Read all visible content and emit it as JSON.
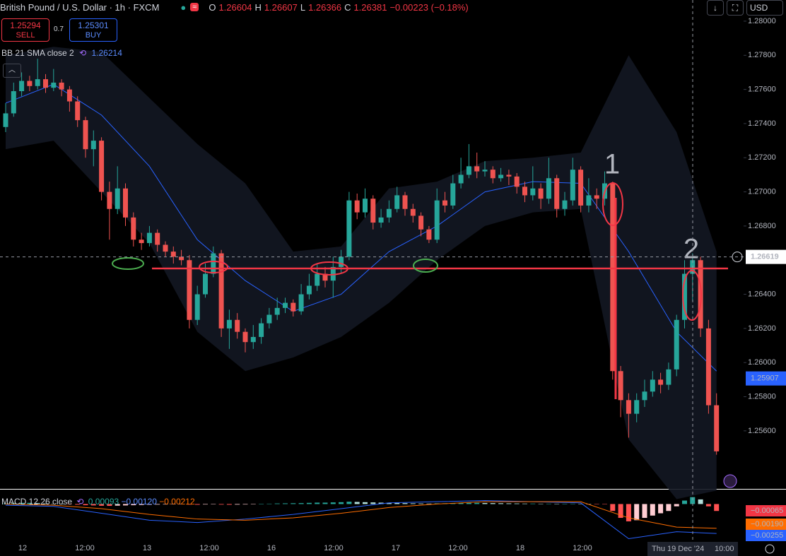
{
  "header": {
    "symbol": "British Pound / U.S. Dollar · 1h · FXCM",
    "o_label": "O",
    "o": "1.26604",
    "h_label": "H",
    "h": "1.26607",
    "l_label": "L",
    "l": "1.26366",
    "c_label": "C",
    "c": "1.26381",
    "change": "−0.00223 (−0.18%)",
    "sell_price": "1.25294",
    "sell": "SELL",
    "spread": "0.7",
    "buy_price": "1.25301",
    "buy": "BUY",
    "indicator": "BB 21 SMA close 2",
    "indicator_value": "1.26214",
    "macd_label": "MACD 12 26 close",
    "macd_values": [
      "0.00093",
      "−0.00120",
      "−0.00212"
    ],
    "currency": "USD"
  },
  "chart_data": {
    "type": "candlestick",
    "candles": [
      [
        1.2738,
        1.2752,
        1.2735,
        1.2746
      ],
      [
        1.2746,
        1.2764,
        1.2744,
        1.2759
      ],
      [
        1.2759,
        1.277,
        1.2756,
        1.2765
      ],
      [
        1.2765,
        1.2768,
        1.2759,
        1.2762
      ],
      [
        1.2762,
        1.2778,
        1.276,
        1.2766
      ],
      [
        1.2766,
        1.2769,
        1.2758,
        1.2761
      ],
      [
        1.2761,
        1.2772,
        1.2759,
        1.2764
      ],
      [
        1.2764,
        1.2766,
        1.2756,
        1.276
      ],
      [
        1.276,
        1.2762,
        1.2747,
        1.2753
      ],
      [
        1.2753,
        1.2756,
        1.2738,
        1.2742
      ],
      [
        1.2742,
        1.2744,
        1.272,
        1.2725
      ],
      [
        1.2725,
        1.2736,
        1.2715,
        1.273
      ],
      [
        1.273,
        1.2732,
        1.2695,
        1.27
      ],
      [
        1.27,
        1.2706,
        1.2672,
        1.269
      ],
      [
        1.269,
        1.2715,
        1.2687,
        1.2702
      ],
      [
        1.2702,
        1.2705,
        1.268,
        1.2685
      ],
      [
        1.2685,
        1.2688,
        1.2668,
        1.2672
      ],
      [
        1.2672,
        1.2676,
        1.2666,
        1.267
      ],
      [
        1.267,
        1.268,
        1.2668,
        1.2676
      ],
      [
        1.2676,
        1.2678,
        1.2665,
        1.2669
      ],
      [
        1.2669,
        1.2671,
        1.2662,
        1.2665
      ],
      [
        1.2665,
        1.2668,
        1.2658,
        1.2662
      ],
      [
        1.2662,
        1.2666,
        1.2657,
        1.266
      ],
      [
        1.266,
        1.2663,
        1.262,
        1.2625
      ],
      [
        1.2625,
        1.2645,
        1.2622,
        1.264
      ],
      [
        1.264,
        1.2658,
        1.2638,
        1.2652
      ],
      [
        1.2652,
        1.2668,
        1.265,
        1.2664
      ],
      [
        1.2664,
        1.2666,
        1.2615,
        1.262
      ],
      [
        1.262,
        1.2631,
        1.2608,
        1.2625
      ],
      [
        1.2625,
        1.2629,
        1.2614,
        1.2618
      ],
      [
        1.2618,
        1.262,
        1.2606,
        1.2612
      ],
      [
        1.2612,
        1.2622,
        1.2608,
        1.2615
      ],
      [
        1.2615,
        1.2626,
        1.2611,
        1.2623
      ],
      [
        1.2623,
        1.2632,
        1.262,
        1.2628
      ],
      [
        1.2628,
        1.2638,
        1.2625,
        1.2632
      ],
      [
        1.2632,
        1.2638,
        1.2629,
        1.2635
      ],
      [
        1.2635,
        1.2637,
        1.2627,
        1.263
      ],
      [
        1.263,
        1.2646,
        1.2628,
        1.264
      ],
      [
        1.264,
        1.2652,
        1.2637,
        1.2645
      ],
      [
        1.2645,
        1.2658,
        1.2642,
        1.2652
      ],
      [
        1.2652,
        1.2656,
        1.2644,
        1.2648
      ],
      [
        1.2648,
        1.2662,
        1.2638,
        1.2656
      ],
      [
        1.2656,
        1.2666,
        1.2652,
        1.2662
      ],
      [
        1.2662,
        1.27,
        1.266,
        1.2695
      ],
      [
        1.2695,
        1.2699,
        1.2684,
        1.2688
      ],
      [
        1.2688,
        1.2702,
        1.2685,
        1.2696
      ],
      [
        1.2696,
        1.2698,
        1.2678,
        1.2682
      ],
      [
        1.2682,
        1.269,
        1.2679,
        1.2685
      ],
      [
        1.2685,
        1.2695,
        1.2682,
        1.269
      ],
      [
        1.269,
        1.2703,
        1.2688,
        1.2698
      ],
      [
        1.2698,
        1.27,
        1.2686,
        1.269
      ],
      [
        1.269,
        1.2693,
        1.2682,
        1.2686
      ],
      [
        1.2686,
        1.2688,
        1.2674,
        1.2678
      ],
      [
        1.2678,
        1.268,
        1.267,
        1.2672
      ],
      [
        1.2672,
        1.2702,
        1.267,
        1.2695
      ],
      [
        1.2695,
        1.27,
        1.2688,
        1.2692
      ],
      [
        1.2692,
        1.271,
        1.269,
        1.2705
      ],
      [
        1.2705,
        1.272,
        1.2702,
        1.271
      ],
      [
        1.271,
        1.2728,
        1.2708,
        1.2715
      ],
      [
        1.2715,
        1.2723,
        1.2708,
        1.2712
      ],
      [
        1.2712,
        1.2718,
        1.2709,
        1.2713
      ],
      [
        1.2713,
        1.2715,
        1.2705,
        1.2708
      ],
      [
        1.2708,
        1.2714,
        1.2706,
        1.271
      ],
      [
        1.271,
        1.2713,
        1.2704,
        1.2709
      ],
      [
        1.2709,
        1.2711,
        1.2699,
        1.2703
      ],
      [
        1.2703,
        1.2706,
        1.2694,
        1.2698
      ],
      [
        1.2698,
        1.2715,
        1.2695,
        1.2702
      ],
      [
        1.2702,
        1.2705,
        1.269,
        1.2696
      ],
      [
        1.2696,
        1.272,
        1.2693,
        1.2708
      ],
      [
        1.2708,
        1.271,
        1.2685,
        1.269
      ],
      [
        1.269,
        1.27,
        1.2686,
        1.2695
      ],
      [
        1.2695,
        1.272,
        1.2692,
        1.2713
      ],
      [
        1.2713,
        1.2715,
        1.2688,
        1.2692
      ],
      [
        1.2692,
        1.2708,
        1.2688,
        1.2698
      ],
      [
        1.2698,
        1.2702,
        1.269,
        1.2696
      ],
      [
        1.2696,
        1.2712,
        1.2692,
        1.2705
      ],
      [
        1.2705,
        1.2706,
        1.259,
        1.2595
      ],
      [
        1.2595,
        1.2598,
        1.2568,
        1.2578
      ],
      [
        1.2578,
        1.2582,
        1.2556,
        1.257
      ],
      [
        1.257,
        1.2582,
        1.2565,
        1.2578
      ],
      [
        1.2578,
        1.259,
        1.2574,
        1.2583
      ],
      [
        1.2583,
        1.2595,
        1.258,
        1.259
      ],
      [
        1.259,
        1.2594,
        1.2582,
        1.2587
      ],
      [
        1.2587,
        1.26,
        1.2584,
        1.2596
      ],
      [
        1.2596,
        1.2628,
        1.2592,
        1.2625
      ],
      [
        1.2625,
        1.266,
        1.262,
        1.2652
      ],
      [
        1.2652,
        1.2664,
        1.2636,
        1.266
      ],
      [
        1.266,
        1.2662,
        1.2615,
        1.262
      ],
      [
        1.262,
        1.2625,
        1.257,
        1.2575
      ],
      [
        1.2575,
        1.2582,
        1.2546,
        1.2548
      ]
    ],
    "up_color": "#26a69a",
    "down_color": "#ef5350",
    "ylim": [
      1.2526,
      1.28124
    ],
    "yticks": [
      {
        "value": 1.28,
        "label": "1.28000"
      },
      {
        "value": 1.278,
        "label": "1.27800"
      },
      {
        "value": 1.276,
        "label": "1.27600"
      },
      {
        "value": 1.274,
        "label": "1.27400"
      },
      {
        "value": 1.272,
        "label": "1.27200"
      },
      {
        "value": 1.27,
        "label": "1.27000"
      },
      {
        "value": 1.268,
        "label": "1.26800"
      },
      {
        "value": 1.264,
        "label": "1.26400"
      },
      {
        "value": 1.262,
        "label": "1.26200"
      },
      {
        "value": 1.26,
        "label": "1.26000"
      },
      {
        "value": 1.258,
        "label": "1.25800"
      },
      {
        "value": 1.256,
        "label": "1.25600"
      }
    ],
    "time_labels": [
      "12",
      "12:00",
      "13",
      "12:00",
      "16",
      "12:00",
      "17",
      "12:00",
      "18",
      "12:00"
    ],
    "bb": {
      "x": [
        0,
        6,
        12,
        18,
        24,
        30,
        36,
        42,
        48,
        54,
        60,
        66,
        72,
        78,
        84,
        89
      ],
      "middle": [
        1.2752,
        1.2763,
        1.2745,
        1.2715,
        1.2672,
        1.2648,
        1.263,
        1.264,
        1.2665,
        1.268,
        1.27,
        1.2706,
        1.2705,
        1.2665,
        1.2618,
        1.2595
      ],
      "upper": [
        1.278,
        1.2785,
        1.2782,
        1.2755,
        1.2728,
        1.2705,
        1.2665,
        1.2668,
        1.2702,
        1.2706,
        1.2718,
        1.272,
        1.2723,
        1.278,
        1.2735,
        1.2665
      ],
      "lower": [
        1.2725,
        1.273,
        1.27,
        1.267,
        1.2618,
        1.2595,
        1.2603,
        1.2615,
        1.2635,
        1.266,
        1.268,
        1.2688,
        1.269,
        1.2555,
        1.252,
        1.2525
      ],
      "color": "#2962ff"
    },
    "crosshair": {
      "price": 1.26619,
      "label": "1.26619",
      "date": "Thu 19 Dec '24",
      "time": "10:00"
    },
    "last_price": {
      "price": 1.25907,
      "label": "1.25907"
    },
    "annotations": [
      "1",
      "2"
    ],
    "macd": {
      "ylim": [
        -0.0045,
        0.00125
      ],
      "histogram": [
        5e-05,
        8e-05,
        0.0001,
        0.0001,
        8e-05,
        5e-05,
        3e-05,
        0,
        -3e-05,
        -6e-05,
        -0.0001,
        -0.00012,
        -0.00015,
        -0.00016,
        -0.00014,
        -0.00012,
        -0.0001,
        -8e-05,
        -6e-05,
        -5e-05,
        -4e-05,
        -3e-05,
        -2e-05,
        -5e-05,
        -6e-05,
        -4e-05,
        -2e-05,
        -5e-05,
        -6e-05,
        -5e-05,
        -4e-05,
        -2e-05,
        1e-05,
        3e-05,
        5e-05,
        6e-05,
        7e-05,
        8e-05,
        0.0001,
        0.00012,
        0.00012,
        0.00014,
        0.00016,
        0.0002,
        0.00018,
        0.00016,
        0.00014,
        0.00012,
        0.0001,
        9e-05,
        8e-05,
        6e-05,
        5e-05,
        4e-05,
        6e-05,
        7e-05,
        8e-05,
        9e-05,
        0.0001,
        0.0001,
        9e-05,
        8e-05,
        7e-05,
        6e-05,
        5e-05,
        4e-05,
        4e-05,
        3e-05,
        3e-05,
        2e-05,
        2e-05,
        3e-05,
        1e-05,
        0,
        -1e-05,
        -2e-05,
        -0.0006,
        -0.0012,
        -0.0015,
        -0.0014,
        -0.0012,
        -0.001,
        -0.0008,
        -0.0006,
        -0.0002,
        0.0003,
        0.0006,
        0.0004,
        -0.0002,
        -0.0006
      ],
      "x": [
        0,
        6,
        12,
        18,
        24,
        30,
        36,
        42,
        48,
        54,
        60,
        66,
        72,
        78,
        84,
        89
      ],
      "macd": [
        -0.0001,
        -0.0002,
        -0.0008,
        -0.0014,
        -0.0016,
        -0.0013,
        -0.0009,
        -0.0004,
        0.0001,
        0.0002,
        0.0003,
        0.0002,
        0.0001,
        -0.003,
        -0.0024,
        -0.00255
      ],
      "signal": [
        0,
        -0.0001,
        -0.0004,
        -0.0009,
        -0.0013,
        -0.0014,
        -0.0012,
        -0.0008,
        -0.0003,
        0,
        0.0002,
        0.0002,
        0.0002,
        -0.0012,
        -0.002,
        -0.0021
      ],
      "macd_color": "#2962ff",
      "signal_color": "#ff6d00",
      "value_labels": [
        "−0.00065",
        "−0.00190",
        "−0.00255"
      ]
    }
  }
}
